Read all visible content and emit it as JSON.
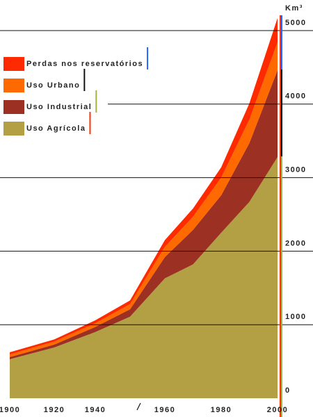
{
  "chart_data": {
    "type": "stacked-area",
    "y_label": "Km³",
    "x": [
      1900,
      1920,
      1940,
      1950,
      1960,
      1970,
      1980,
      1990,
      2000
    ],
    "series": [
      {
        "name": "Uso Agrícola",
        "color": "#b3a045",
        "values": [
          530,
          690,
          900,
          1110,
          1630,
          1820,
          2250,
          2670,
          3280
        ]
      },
      {
        "name": "Uso Industrial",
        "color": "#9c3022",
        "values": [
          30,
          40,
          70,
          100,
          290,
          470,
          510,
          800,
          1180
        ]
      },
      {
        "name": "Uso Urbano",
        "color": "#ff6a00",
        "values": [
          35,
          40,
          50,
          70,
          140,
          180,
          240,
          320,
          380
        ]
      },
      {
        "name": "Perdas nos reservatórios",
        "color": "#ff2a00",
        "values": [
          30,
          30,
          40,
          50,
          90,
          110,
          140,
          220,
          330
        ]
      }
    ],
    "xticks": [
      1900,
      1920,
      1940,
      1960,
      1980,
      2000
    ],
    "ylim": [
      0,
      5000
    ],
    "yticks": [
      0,
      1000,
      2000,
      3000,
      4000,
      5000
    ],
    "grid": true
  }
}
